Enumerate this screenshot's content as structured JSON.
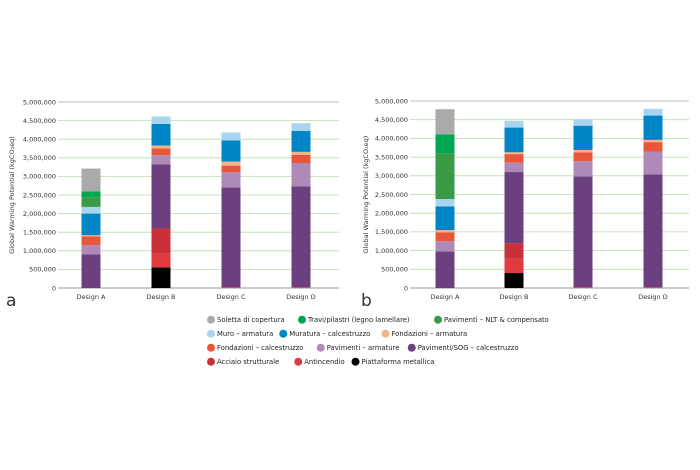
{
  "series_meta": [
    {
      "name": "Soletta di copertura",
      "color": "#aaaaaa"
    },
    {
      "name": "Travi/pilastri (legno lamellare)",
      "color": "#00a650"
    },
    {
      "name": "Pavimenti – NLT & compensato",
      "color": "#3a9a45"
    },
    {
      "name": "Muro – armatura",
      "color": "#a8d4ee"
    },
    {
      "name": "Muratura – calcestruzzo",
      "color": "#0086c6"
    },
    {
      "name": "Fondazioni – armatura",
      "color": "#f2b48a"
    },
    {
      "name": "Fondazioni – calcestruzzo",
      "color": "#e8573a"
    },
    {
      "name": "Pavimenti – armature",
      "color": "#ae8ab8"
    },
    {
      "name": "Pavimenti/SOG – calcestruzzo",
      "color": "#6c3f7f"
    },
    {
      "name": "Acciaio strutturale",
      "color": "#c8303a"
    },
    {
      "name": "Antincendio",
      "color": "#e03a3e"
    },
    {
      "name": "Piattaforma metallica",
      "color": "#000000"
    }
  ],
  "stack_order": [
    "Piattaforma metallica",
    "Antincendio",
    "Acciaio strutturale",
    "Pavimenti/SOG – calcestruzzo",
    "Pavimenti – armature",
    "Fondazioni – calcestruzzo",
    "Fondazioni – armatura",
    "Muratura – calcestruzzo",
    "Muro – armatura",
    "Pavimenti – NLT & compensato",
    "Travi/pilastri (legno lamellare)",
    "Soletta di copertura"
  ],
  "chart_data": [
    {
      "type": "bar",
      "stacked": true,
      "panel_label": "a",
      "title": "",
      "xlabel": "",
      "ylabel": "Global Warming Potential (kgCO₂eq)",
      "ylim": [
        0,
        5000000
      ],
      "yticks": [
        0,
        500000,
        1000000,
        1500000,
        2000000,
        2500000,
        3000000,
        3500000,
        4000000,
        4500000,
        5000000
      ],
      "ytick_labels": [
        "0",
        "500,000",
        "1,000,000",
        "1,500,000",
        "2,000,000",
        "2,500,000",
        "3,000,000",
        "3,500,000",
        "4,000,000",
        "4,500,000",
        "5,000,000"
      ],
      "grid": true,
      "categories": [
        "Design A",
        "Design B",
        "Design C",
        "Design D"
      ],
      "series": [
        {
          "name": "Piattaforma metallica",
          "values": [
            0,
            555000,
            0,
            0
          ]
        },
        {
          "name": "Antincendio",
          "values": [
            0,
            365000,
            20000,
            20000
          ]
        },
        {
          "name": "Acciaio strutturale",
          "values": [
            0,
            680000,
            0,
            0
          ]
        },
        {
          "name": "Pavimenti/SOG – calcestruzzo",
          "values": [
            900000,
            1720000,
            2680000,
            2710000
          ]
        },
        {
          "name": "Pavimenti – armature",
          "values": [
            250000,
            250000,
            410000,
            630000
          ]
        },
        {
          "name": "Fondazioni – calcestruzzo",
          "values": [
            240000,
            180000,
            180000,
            220000
          ]
        },
        {
          "name": "Fondazioni – armatura",
          "values": [
            30000,
            80000,
            110000,
            80000
          ]
        },
        {
          "name": "Muratura – calcestruzzo",
          "values": [
            580000,
            580000,
            570000,
            560000
          ]
        },
        {
          "name": "Muro – armatura",
          "values": [
            180000,
            200000,
            210000,
            210000
          ]
        },
        {
          "name": "Pavimenti – NLT & compensato",
          "values": [
            260000,
            0,
            0,
            0
          ]
        },
        {
          "name": "Travi/pilastri (legno lamellare)",
          "values": [
            160000,
            0,
            0,
            0
          ]
        },
        {
          "name": "Soletta di copertura",
          "values": [
            610000,
            0,
            0,
            0
          ]
        }
      ]
    },
    {
      "type": "bar",
      "stacked": true,
      "panel_label": "b",
      "title": "",
      "xlabel": "",
      "ylabel": "Global Warming Potential (kgCO₂eq)",
      "ylim": [
        0,
        5000000
      ],
      "yticks": [
        0,
        500000,
        1000000,
        1500000,
        2000000,
        2500000,
        3000000,
        3500000,
        4000000,
        4500000,
        5000000
      ],
      "ytick_labels": [
        "0",
        "500,000",
        "1,000,000",
        "1,500,000",
        "2,000,000",
        "2,500,000",
        "3,000,000",
        "3,500,000",
        "4,000,000",
        "4,500,000",
        "5,000,000"
      ],
      "grid": true,
      "categories": [
        "Design A",
        "Design B",
        "Design C",
        "Design D"
      ],
      "series": [
        {
          "name": "Piattaforma metallica",
          "values": [
            0,
            400000,
            0,
            0
          ]
        },
        {
          "name": "Antincendio",
          "values": [
            0,
            380000,
            20000,
            20000
          ]
        },
        {
          "name": "Acciaio strutturale",
          "values": [
            0,
            420000,
            0,
            0
          ]
        },
        {
          "name": "Pavimenti/SOG – calcestruzzo",
          "values": [
            980000,
            1900000,
            2960000,
            3020000
          ]
        },
        {
          "name": "Pavimenti – armature",
          "values": [
            270000,
            250000,
            410000,
            610000
          ]
        },
        {
          "name": "Fondazioni – calcestruzzo",
          "values": [
            240000,
            230000,
            240000,
            250000
          ]
        },
        {
          "name": "Fondazioni – armatura",
          "values": [
            60000,
            50000,
            60000,
            60000
          ]
        },
        {
          "name": "Muratura – calcestruzzo",
          "values": [
            630000,
            660000,
            650000,
            650000
          ]
        },
        {
          "name": "Muro – armatura",
          "values": [
            200000,
            180000,
            170000,
            180000
          ]
        },
        {
          "name": "Pavimenti – NLT & compensato",
          "values": [
            1220000,
            0,
            0,
            0
          ]
        },
        {
          "name": "Travi/pilastri (legno lamellare)",
          "values": [
            510000,
            0,
            0,
            0
          ]
        },
        {
          "name": "Soletta di copertura",
          "values": [
            670000,
            0,
            0,
            0
          ]
        }
      ]
    }
  ],
  "legend": {
    "rows": [
      [
        "Soletta di copertura",
        "Travi/pilastri (legno lamellare)",
        "Pavimenti – NLT & compensato"
      ],
      [
        "Muro – armatura",
        "Muratura – calcestruzzo",
        "Fondazioni – armatura"
      ],
      [
        "Fondazioni – calcestruzzo",
        "Pavimenti – armature",
        "Pavimenti/SOG – calcestruzzo"
      ],
      [
        "Acciaio strutturale",
        "Antincendio",
        "Piattaforma metallica"
      ]
    ]
  }
}
